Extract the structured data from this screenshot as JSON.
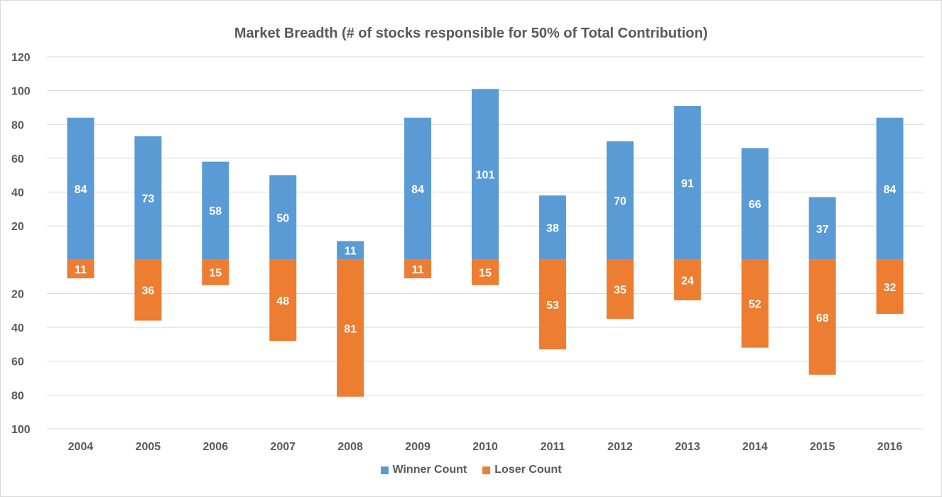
{
  "chart_data": {
    "type": "bar",
    "title": "Market Breadth (# of stocks responsible for 50% of Total Contribution)",
    "xlabel": "",
    "ylabel": "",
    "categories": [
      "2004",
      "2005",
      "2006",
      "2007",
      "2008",
      "2009",
      "2010",
      "2011",
      "2012",
      "2013",
      "2014",
      "2015",
      "2016"
    ],
    "series": [
      {
        "name": "Winner Count",
        "color": "#5b9bd5",
        "direction": "up",
        "values": [
          84,
          73,
          58,
          50,
          11,
          84,
          101,
          38,
          70,
          91,
          66,
          37,
          84
        ]
      },
      {
        "name": "Loser Count",
        "color": "#ed7d31",
        "direction": "down",
        "values": [
          11,
          36,
          15,
          48,
          81,
          11,
          15,
          53,
          35,
          24,
          52,
          68,
          32
        ]
      }
    ],
    "ylim": [
      -100,
      120
    ],
    "yticks": [
      120,
      100,
      80,
      60,
      40,
      20,
      -20,
      -40,
      -60,
      -80,
      -100
    ],
    "ytick_labels": [
      "120",
      "100",
      "80",
      "60",
      "40",
      "20",
      "20",
      "40",
      "60",
      "80",
      "100"
    ],
    "grid": true,
    "legend_position": "bottom"
  }
}
